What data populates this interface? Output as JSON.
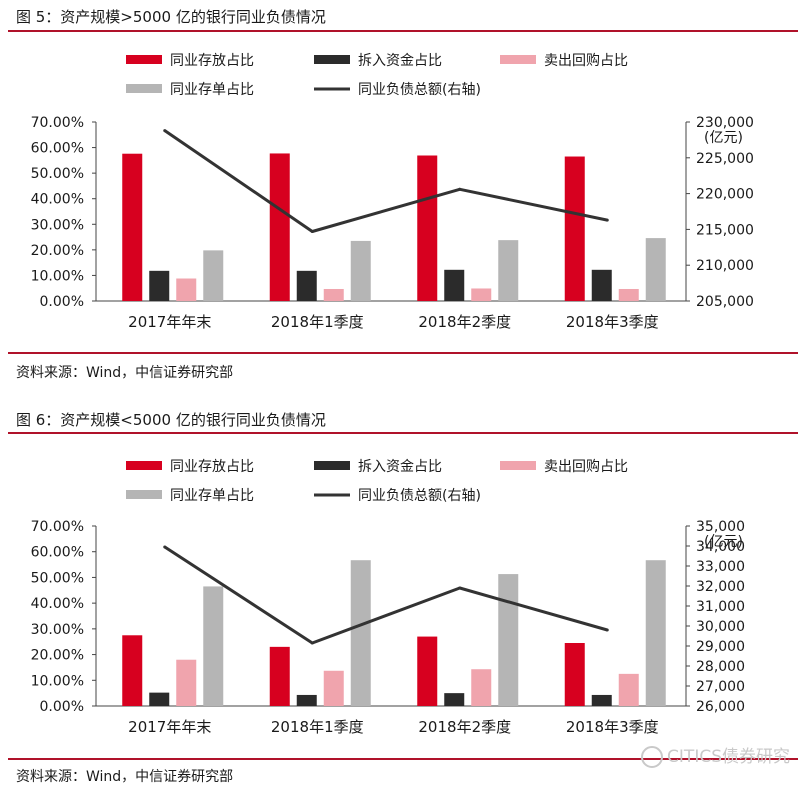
{
  "colors": {
    "red": "#d7001f",
    "black": "#2b2b2b",
    "pink": "#f0a4ad",
    "gray": "#b5b5b5",
    "line": "#333333",
    "rule": "#b0122a"
  },
  "figures": [
    {
      "title": "图 5：资产规模>5000 亿的银行同业负债情况",
      "source": "资料来源：Wind，中信证券研究部"
    },
    {
      "title": "图 6：资产规模<5000 亿的银行同业负债情况",
      "source": "资料来源：Wind，中信证券研究部"
    }
  ],
  "watermark": "CITICS债券研究",
  "chart_data": [
    {
      "type": "bar",
      "categories": [
        "2017年年末",
        "2018年1季度",
        "2018年2季度",
        "2018年3季度"
      ],
      "series": [
        {
          "name": "同业存放占比",
          "values": [
            0.576,
            0.577,
            0.569,
            0.565
          ]
        },
        {
          "name": "拆入资金占比",
          "values": [
            0.118,
            0.118,
            0.122,
            0.122
          ]
        },
        {
          "name": "卖出回购占比",
          "values": [
            0.088,
            0.047,
            0.049,
            0.047
          ]
        },
        {
          "name": "同业存单占比",
          "values": [
            0.198,
            0.235,
            0.238,
            0.246
          ]
        }
      ],
      "line_series": {
        "name": "同业负债总额(右轴)",
        "values": [
          228800,
          214700,
          220600,
          216300
        ]
      },
      "y_left": {
        "min": 0,
        "max": 0.7,
        "ticks": [
          "0.00%",
          "10.00%",
          "20.00%",
          "30.00%",
          "40.00%",
          "50.00%",
          "60.00%",
          "70.00%"
        ]
      },
      "y_right": {
        "min": 205000,
        "max": 230000,
        "ticks": [
          "205,000",
          "210,000",
          "215,000",
          "220,000",
          "225,000",
          "230,000"
        ],
        "unit_label": "(亿元)"
      },
      "legend_position": "top",
      "grid": false
    },
    {
      "type": "bar",
      "categories": [
        "2017年年末",
        "2018年1季度",
        "2018年2季度",
        "2018年3季度"
      ],
      "series": [
        {
          "name": "同业存放占比",
          "values": [
            0.275,
            0.23,
            0.27,
            0.245
          ]
        },
        {
          "name": "拆入资金占比",
          "values": [
            0.052,
            0.043,
            0.05,
            0.043
          ]
        },
        {
          "name": "卖出回购占比",
          "values": [
            0.18,
            0.137,
            0.143,
            0.125
          ]
        },
        {
          "name": "同业存单占比",
          "values": [
            0.465,
            0.567,
            0.513,
            0.567
          ]
        }
      ],
      "line_series": {
        "name": "同业负债总额(右轴)",
        "values": [
          33950,
          29150,
          31900,
          29800
        ]
      },
      "y_left": {
        "min": 0,
        "max": 0.7,
        "ticks": [
          "0.00%",
          "10.00%",
          "20.00%",
          "30.00%",
          "40.00%",
          "50.00%",
          "60.00%",
          "70.00%"
        ]
      },
      "y_right": {
        "min": 26000,
        "max": 35000,
        "ticks": [
          "26,000",
          "27,000",
          "28,000",
          "29,000",
          "30,000",
          "31,000",
          "32,000",
          "33,000",
          "34,000",
          "35,000"
        ],
        "unit_label": "(亿元)"
      },
      "legend_position": "top",
      "grid": false
    }
  ]
}
